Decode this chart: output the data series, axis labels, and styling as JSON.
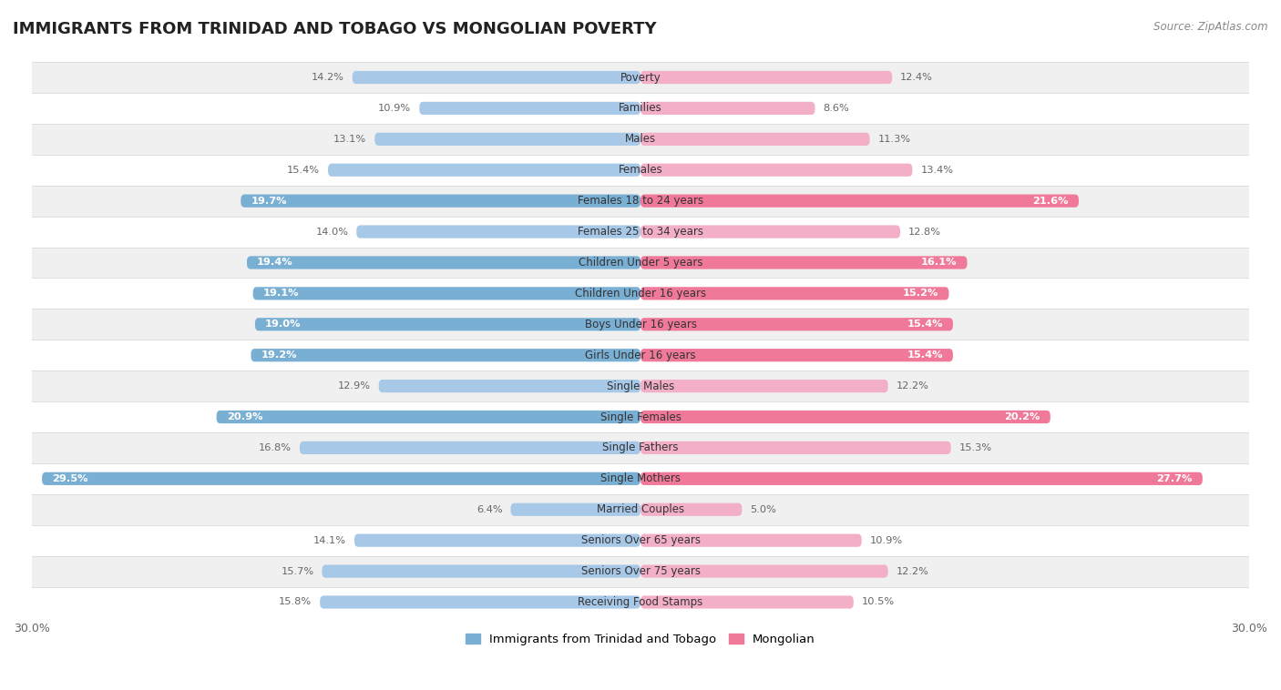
{
  "title": "IMMIGRANTS FROM TRINIDAD AND TOBAGO VS MONGOLIAN POVERTY",
  "source": "Source: ZipAtlas.com",
  "categories": [
    "Poverty",
    "Families",
    "Males",
    "Females",
    "Females 18 to 24 years",
    "Females 25 to 34 years",
    "Children Under 5 years",
    "Children Under 16 years",
    "Boys Under 16 years",
    "Girls Under 16 years",
    "Single Males",
    "Single Females",
    "Single Fathers",
    "Single Mothers",
    "Married Couples",
    "Seniors Over 65 years",
    "Seniors Over 75 years",
    "Receiving Food Stamps"
  ],
  "left_values": [
    14.2,
    10.9,
    13.1,
    15.4,
    19.7,
    14.0,
    19.4,
    19.1,
    19.0,
    19.2,
    12.9,
    20.9,
    16.8,
    29.5,
    6.4,
    14.1,
    15.7,
    15.8
  ],
  "right_values": [
    12.4,
    8.6,
    11.3,
    13.4,
    21.6,
    12.8,
    16.1,
    15.2,
    15.4,
    15.4,
    12.2,
    20.2,
    15.3,
    27.7,
    5.0,
    10.9,
    12.2,
    10.5
  ],
  "left_color_normal": "#a8c8e8",
  "right_color_normal": "#f4afc8",
  "left_color_highlight": "#7aafd4",
  "right_color_highlight": "#f07898",
  "highlight_rows": [
    4,
    6,
    7,
    8,
    9,
    11,
    13
  ],
  "left_label": "Immigrants from Trinidad and Tobago",
  "right_label": "Mongolian",
  "background_color": "#ffffff",
  "row_bg_odd": "#f0f0f0",
  "row_bg_even": "#ffffff",
  "row_border": "#dddddd",
  "xlim": 30.0,
  "bar_height": 0.42,
  "title_fontsize": 13,
  "label_fontsize": 8.5,
  "value_fontsize": 8.2,
  "value_color_outside": "#666666",
  "value_color_inside": "#ffffff"
}
